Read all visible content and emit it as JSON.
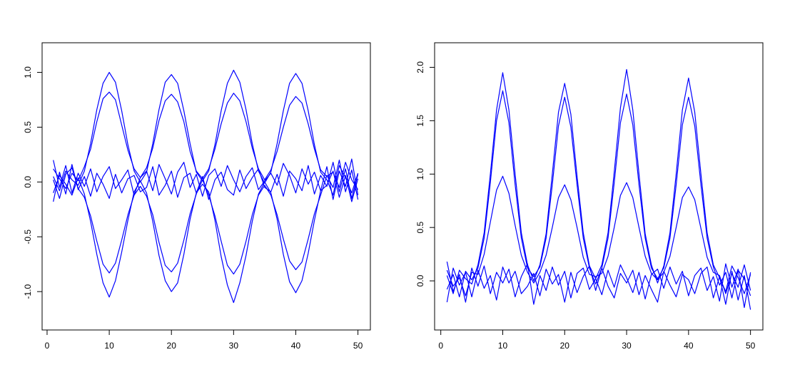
{
  "chart_data": [
    {
      "type": "line",
      "color": "#0000ff",
      "x": [
        1,
        2,
        3,
        4,
        5,
        6,
        7,
        8,
        9,
        10,
        11,
        12,
        13,
        14,
        15,
        16,
        17,
        18,
        19,
        20,
        21,
        22,
        23,
        24,
        25,
        26,
        27,
        28,
        29,
        30,
        31,
        32,
        33,
        34,
        35,
        36,
        37,
        38,
        39,
        40,
        41,
        42,
        43,
        44,
        45,
        46,
        47,
        48,
        49,
        50
      ],
      "xlim": [
        -0.8,
        52
      ],
      "xticks": [
        0,
        10,
        20,
        30,
        40,
        50
      ],
      "ylim": [
        -1.35,
        1.27
      ],
      "yticks": [
        {
          "value": -1,
          "label": "-1.0"
        },
        {
          "value": -0.5,
          "label": "-0.5"
        },
        {
          "value": 0,
          "label": "0.0"
        },
        {
          "value": 0.5,
          "label": "0.5"
        },
        {
          "value": 1,
          "label": "1.0"
        }
      ],
      "series": [
        {
          "values": [
            0.05,
            -0.08,
            0.1,
            0.02,
            -0.03,
            0.1,
            0.35,
            0.66,
            0.9,
            1.0,
            0.91,
            0.65,
            0.34,
            0.1,
            0.0,
            0.09,
            0.35,
            0.66,
            0.91,
            0.98,
            0.9,
            0.65,
            0.35,
            0.09,
            0.01,
            0.1,
            0.34,
            0.65,
            0.9,
            1.02,
            0.91,
            0.66,
            0.35,
            0.1,
            -0.01,
            0.09,
            0.35,
            0.65,
            0.9,
            0.99,
            0.9,
            0.65,
            0.34,
            0.09,
            0.02,
            -0.12,
            0.15,
            0.04,
            -0.1,
            0.08
          ]
        },
        {
          "values": [
            0.12,
            0.03,
            -0.06,
            0.08,
            0.01,
            0.14,
            0.3,
            0.55,
            0.76,
            0.82,
            0.75,
            0.52,
            0.29,
            0.12,
            0.04,
            0.13,
            0.31,
            0.56,
            0.74,
            0.8,
            0.73,
            0.55,
            0.28,
            0.1,
            0.03,
            0.12,
            0.3,
            0.53,
            0.72,
            0.81,
            0.74,
            0.55,
            0.31,
            0.12,
            0.02,
            0.11,
            0.28,
            0.5,
            0.7,
            0.78,
            0.72,
            0.53,
            0.3,
            0.11,
            0.05,
            0.09,
            -0.05,
            0.18,
            0.02,
            -0.07
          ]
        },
        {
          "values": [
            -0.1,
            0.06,
            -0.02,
            -0.12,
            0.04,
            -0.11,
            -0.36,
            -0.66,
            -0.92,
            -1.05,
            -0.9,
            -0.64,
            -0.35,
            -0.09,
            0.01,
            -0.1,
            -0.36,
            -0.67,
            -0.9,
            -1.0,
            -0.92,
            -0.66,
            -0.34,
            -0.1,
            -0.02,
            -0.09,
            -0.35,
            -0.68,
            -0.94,
            -1.1,
            -0.92,
            -0.67,
            -0.36,
            -0.11,
            0.0,
            -0.1,
            -0.34,
            -0.66,
            -0.91,
            -1.01,
            -0.9,
            -0.65,
            -0.35,
            -0.08,
            -0.03,
            0.1,
            -0.14,
            0.06,
            -0.18,
            0.03
          ]
        },
        {
          "values": [
            0.02,
            -0.15,
            0.07,
            0.13,
            -0.06,
            -0.14,
            -0.31,
            -0.54,
            -0.75,
            -0.83,
            -0.74,
            -0.53,
            -0.3,
            -0.12,
            -0.04,
            -0.13,
            -0.3,
            -0.55,
            -0.76,
            -0.82,
            -0.74,
            -0.53,
            -0.29,
            -0.11,
            0.02,
            -0.12,
            -0.31,
            -0.54,
            -0.76,
            -0.84,
            -0.75,
            -0.54,
            -0.3,
            -0.12,
            -0.03,
            -0.12,
            -0.3,
            -0.52,
            -0.72,
            -0.8,
            -0.73,
            -0.52,
            -0.29,
            -0.12,
            0.06,
            -0.05,
            0.2,
            -0.09,
            0.11,
            -0.16
          ]
        },
        {
          "values": [
            0.2,
            -0.05,
            0.15,
            -0.1,
            0.08,
            -0.04,
            0.12,
            -0.09,
            0.05,
            0.14,
            -0.06,
            0.02,
            0.11,
            -0.12,
            0.04,
            0.1,
            -0.08,
            0.16,
            0.03,
            -0.11,
            0.09,
            0.18,
            -0.05,
            0.07,
            -0.13,
            0.06,
            0.12,
            -0.04,
            0.15,
            0.02,
            -0.09,
            0.05,
            0.13,
            -0.07,
            0.01,
            0.08,
            -0.03,
            0.17,
            0.06,
            -0.1,
            0.12,
            -0.02,
            0.09,
            -0.08,
            0.14,
            -0.16,
            0.1,
            -0.04,
            0.21,
            -0.12
          ]
        },
        {
          "values": [
            -0.18,
            0.09,
            -0.11,
            0.16,
            -0.07,
            0.05,
            -0.13,
            0.08,
            -0.02,
            -0.15,
            0.07,
            -0.1,
            0.03,
            0.06,
            -0.09,
            -0.05,
            0.14,
            -0.12,
            -0.03,
            0.1,
            -0.14,
            0.04,
            0.08,
            -0.1,
            0.05,
            -0.16,
            0.02,
            0.09,
            -0.07,
            -0.12,
            0.11,
            -0.06,
            0.04,
            0.12,
            -0.05,
            -0.09,
            0.07,
            -0.13,
            0.1,
            0.03,
            -0.08,
            0.15,
            -0.11,
            0.06,
            -0.04,
            0.18,
            -0.09,
            0.12,
            -0.15,
            0.07
          ]
        }
      ]
    },
    {
      "type": "line",
      "color": "#0000ff",
      "x": [
        1,
        2,
        3,
        4,
        5,
        6,
        7,
        8,
        9,
        10,
        11,
        12,
        13,
        14,
        15,
        16,
        17,
        18,
        19,
        20,
        21,
        22,
        23,
        24,
        25,
        26,
        27,
        28,
        29,
        30,
        31,
        32,
        33,
        34,
        35,
        36,
        37,
        38,
        39,
        40,
        41,
        42,
        43,
        44,
        45,
        46,
        47,
        48,
        49,
        50
      ],
      "xlim": [
        -1,
        52
      ],
      "xticks": [
        0,
        10,
        20,
        30,
        40,
        50
      ],
      "ylim": [
        -0.46,
        2.23
      ],
      "yticks": [
        {
          "value": 0,
          "label": "0.0"
        },
        {
          "value": 0.5,
          "label": "0.5"
        },
        {
          "value": 1,
          "label": "1.0"
        },
        {
          "value": 1.5,
          "label": "1.5"
        },
        {
          "value": 2,
          "label": "2.0"
        }
      ],
      "series": [
        {
          "values": [
            0.05,
            -0.12,
            0.1,
            0.02,
            -0.03,
            0.15,
            0.45,
            1.0,
            1.6,
            1.95,
            1.6,
            1.0,
            0.45,
            0.15,
            0.0,
            0.15,
            0.44,
            1.0,
            1.58,
            1.85,
            1.56,
            0.98,
            0.45,
            0.14,
            0.02,
            0.15,
            0.45,
            1.02,
            1.62,
            1.98,
            1.6,
            1.0,
            0.44,
            0.15,
            -0.02,
            0.14,
            0.45,
            1.0,
            1.6,
            1.9,
            1.58,
            1.0,
            0.45,
            0.15,
            0.03,
            -0.1,
            0.14,
            0.03,
            -0.12,
            0.06
          ]
        },
        {
          "values": [
            -0.08,
            0.06,
            -0.15,
            0.09,
            0.01,
            0.12,
            0.4,
            0.92,
            1.5,
            1.78,
            1.48,
            0.9,
            0.4,
            0.12,
            0.04,
            0.13,
            0.4,
            0.9,
            1.45,
            1.72,
            1.44,
            0.9,
            0.4,
            0.12,
            -0.03,
            0.12,
            0.4,
            0.92,
            1.48,
            1.75,
            1.46,
            0.9,
            0.4,
            0.12,
            0.02,
            0.12,
            0.4,
            0.9,
            1.46,
            1.72,
            1.45,
            0.9,
            0.4,
            0.13,
            -0.04,
            0.08,
            -0.16,
            0.1,
            0.02,
            -0.14
          ]
        },
        {
          "values": [
            0.1,
            -0.05,
            0.03,
            -0.14,
            0.08,
            0.06,
            0.25,
            0.55,
            0.85,
            0.98,
            0.82,
            0.52,
            0.24,
            0.08,
            -0.02,
            0.08,
            0.24,
            0.5,
            0.78,
            0.9,
            0.76,
            0.5,
            0.22,
            0.06,
            0.04,
            0.07,
            0.23,
            0.5,
            0.8,
            0.92,
            0.78,
            0.5,
            0.23,
            0.07,
            0.01,
            0.08,
            0.23,
            0.5,
            0.78,
            0.88,
            0.76,
            0.49,
            0.22,
            0.08,
            0.05,
            -0.12,
            0.07,
            -0.06,
            0.15,
            -0.09
          ]
        },
        {
          "values": [
            0.18,
            -0.1,
            0.06,
            -0.2,
            0.12,
            -0.05,
            0.14,
            -0.12,
            0.08,
            -0.02,
            0.11,
            -0.15,
            0.04,
            0.16,
            -0.22,
            0.05,
            -0.09,
            0.13,
            -0.04,
            0.09,
            -0.16,
            0.07,
            0.12,
            -0.08,
            0.02,
            -0.13,
            0.1,
            -0.06,
            0.15,
            0.03,
            -0.11,
            0.08,
            -0.17,
            0.06,
            0.11,
            -0.07,
            0.13,
            -0.03,
            0.09,
            -0.14,
            0.05,
            0.12,
            -0.09,
            0.04,
            -0.19,
            0.16,
            -0.06,
            0.11,
            -0.25,
            0.08
          ]
        },
        {
          "values": [
            -0.2,
            0.12,
            -0.04,
            0.08,
            -0.15,
            0.1,
            -0.07,
            0.05,
            -0.18,
            0.13,
            -0.02,
            0.09,
            -0.12,
            -0.05,
            0.07,
            -0.14,
            0.11,
            -0.03,
            0.06,
            -0.2,
            0.08,
            -0.11,
            0.04,
            0.14,
            -0.09,
            0.12,
            -0.05,
            -0.16,
            0.07,
            -0.02,
            0.1,
            -0.13,
            0.05,
            -0.08,
            -0.2,
            0.09,
            -0.04,
            -0.15,
            0.06,
            0.01,
            -0.12,
            0.07,
            0.13,
            -0.16,
            0.04,
            -0.22,
            0.09,
            -0.18,
            0.05,
            -0.27
          ]
        }
      ]
    }
  ]
}
